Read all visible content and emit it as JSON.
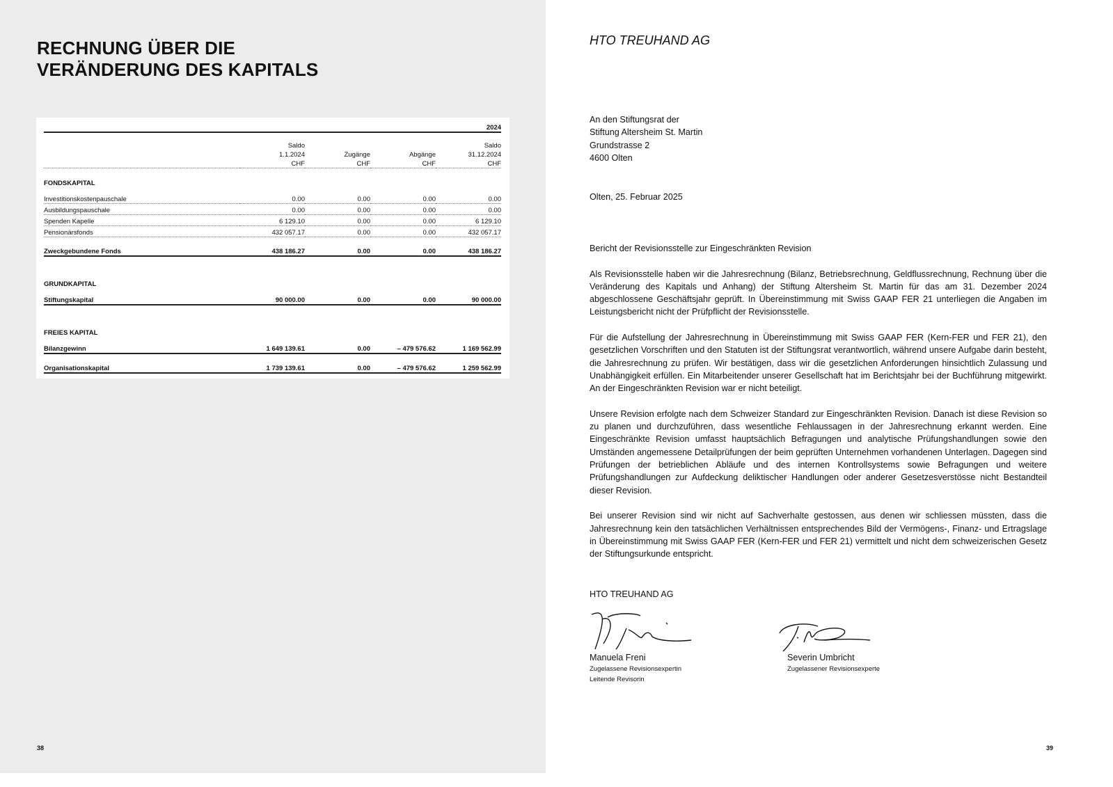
{
  "left": {
    "title_line1": "RECHNUNG ÜBER DIE",
    "title_line2": "VERÄNDERUNG DES KAPITALS",
    "page": "38",
    "table": {
      "year": "2024",
      "headers": [
        [
          "",
          "",
          ""
        ],
        [
          "Saldo",
          "1.1.2024",
          "CHF"
        ],
        [
          "",
          "Zugänge",
          "CHF"
        ],
        [
          "",
          "Abgänge",
          "CHF"
        ],
        [
          "Saldo",
          "31.12.2024",
          "CHF"
        ]
      ],
      "sections": [
        {
          "heading": "FONDSKAPITAL",
          "rows": [
            [
              "Investitionskostenpauschale",
              "0.00",
              "0.00",
              "0.00",
              "0.00"
            ],
            [
              "Ausbildungspauschale",
              "0.00",
              "0.00",
              "0.00",
              "0.00"
            ],
            [
              "Spenden Kapelle",
              "6 129.10",
              "0.00",
              "0.00",
              "6 129.10"
            ],
            [
              "Pensionärsfonds",
              "432 057.17",
              "0.00",
              "0.00",
              "432 057.17"
            ]
          ],
          "total": [
            "Zweckgebundene Fonds",
            "438 186.27",
            "0.00",
            "0.00",
            "438 186.27"
          ]
        },
        {
          "heading": "GRUNDKAPITAL",
          "rows": [],
          "total": [
            "Stiftungskapital",
            "90 000.00",
            "0.00",
            "0.00",
            "90 000.00"
          ]
        },
        {
          "heading": "FREIES KAPITAL",
          "rows": [],
          "total": [
            "Bilanzgewinn",
            "1 649 139.61",
            "0.00",
            "– 479 576.62",
            "1 169 562.99"
          ]
        }
      ],
      "grand_total": [
        "Organisationskapital",
        "1 739 139.61",
        "0.00",
        "– 479 576.62",
        "1 259 562.99"
      ]
    }
  },
  "right": {
    "company": "HTO TREUHAND AG",
    "page": "39",
    "address": [
      "An den Stiftungsrat der",
      "Stiftung Altersheim St. Martin",
      "Grundstrasse 2",
      "4600 Olten"
    ],
    "date": "Olten, 25. Februar 2025",
    "subject": "Bericht der Revisionsstelle zur Eingeschränkten Revision",
    "paragraphs": [
      "Als Revisionsstelle haben wir die Jahresrechnung (Bilanz, Betriebsrechnung, Geldflussrechnung, Rechnung über die Veränderung des Kapitals und Anhang) der Stiftung Altersheim St. Martin für das am 31. Dezember 2024 abgeschlossene Geschäftsjahr geprüft. In Übereinstimmung mit Swiss GAAP FER 21 unterliegen die Angaben im Leistungsbericht nicht der Prüfpflicht der Revisionsstelle.",
      "Für die Aufstellung der Jahresrechnung in Übereinstimmung mit Swiss GAAP FER (Kern-FER und FER 21), den gesetzlichen Vorschriften und den Statuten ist der Stiftungsrat verantwortlich, während unsere Aufgabe darin besteht, die Jahresrechnung zu prüfen. Wir bestätigen, dass wir die gesetzlichen Anforderungen hinsichtlich Zulassung und Unabhängigkeit erfüllen. Ein Mitarbeitender unserer Gesellschaft hat im Berichtsjahr bei der Buchführung mitgewirkt. An der Eingeschränkten Revision war er nicht beteiligt.",
      "Unsere Revision erfolgte nach dem Schweizer Standard zur Eingeschränkten Revision. Danach ist diese Revision so zu planen und durchzuführen, dass wesentliche Fehlaussagen in der Jahresrechnung erkannt werden. Eine Eingeschränkte Revision umfasst hauptsächlich Befragungen und analytische Prüfungshandlungen sowie den Umständen angemessene Detailprüfungen der beim geprüften Unternehmen vorhandenen Unterlagen. Dagegen sind Prüfungen der betrieblichen Abläufe und des internen Kontrollsystems sowie Befragungen und weitere Prüfungshandlungen zur Aufdeckung deliktischer Handlungen oder anderer Gesetzesverstösse nicht Bestandteil dieser Revision.",
      "Bei unserer Revision sind wir nicht auf Sachverhalte gestossen, aus denen wir schliessen müssten, dass die Jahresrechnung kein den tatsächlichen Verhältnissen entsprechendes Bild der Vermögens-, Finanz- und Ertragslage in Übereinstimmung mit Swiss GAAP FER (Kern-FER und FER 21) vermittelt und nicht dem schwei­zerischen Gesetz der Stiftungsurkunde entspricht."
    ],
    "signoff": "HTO TREUHAND AG",
    "signers": [
      {
        "name": "Manuela Freni",
        "roles": [
          "Zugelassene Revisionsexpertin",
          "Leitende Revisorin"
        ]
      },
      {
        "name": "Severin Umbricht",
        "roles": [
          "Zugelassener Revisionsexperte"
        ]
      }
    ]
  }
}
